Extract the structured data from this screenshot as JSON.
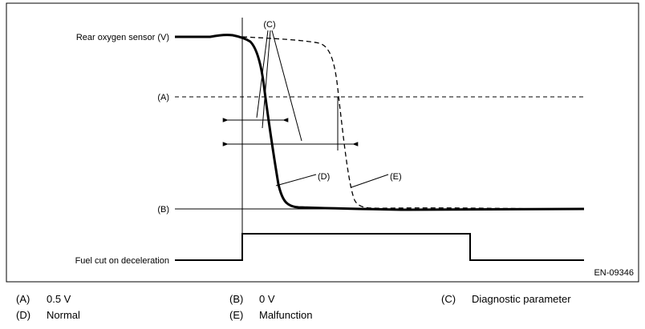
{
  "diagram": {
    "rear_sensor_label": "Rear oxygen sensor (V)",
    "fuel_cut_label": "Fuel cut on deceleration",
    "level_a_tag": "(A)",
    "level_b_tag": "(B)",
    "callout_c": "(C)",
    "callout_d": "(D)",
    "callout_e": "(E)",
    "figure_code": "EN-09346"
  },
  "legend": [
    {
      "key": "(A)",
      "text": "0.5 V"
    },
    {
      "key": "(B)",
      "text": "0 V"
    },
    {
      "key": "(C)",
      "text": "Diagnostic parameter"
    },
    {
      "key": "(D)",
      "text": "Normal"
    },
    {
      "key": "(E)",
      "text": "Malfunction"
    }
  ]
}
